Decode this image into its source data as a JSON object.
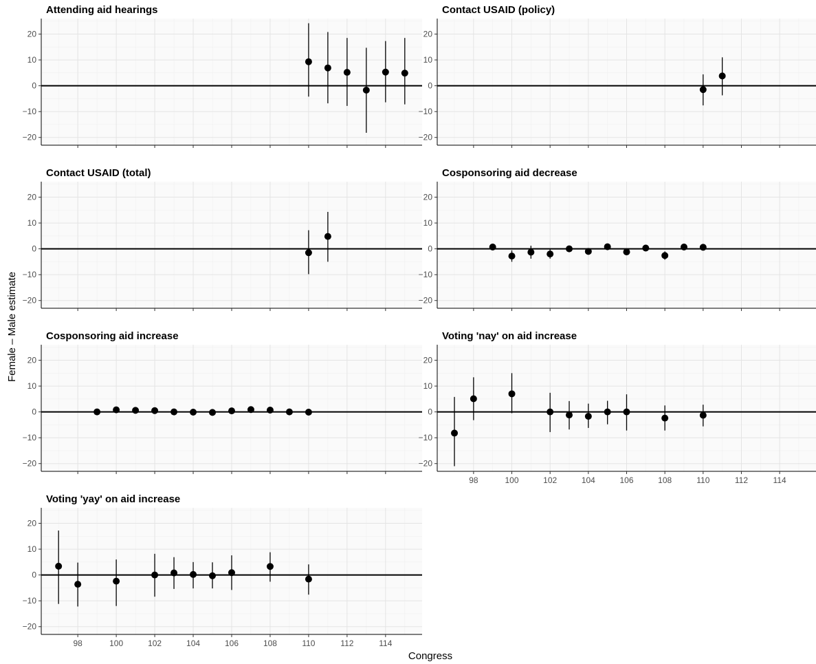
{
  "chart_data": {
    "type": "scatter",
    "style": "point-range faceted plot",
    "xlabel": "Congress",
    "ylabel": "Female – Male estimate",
    "xlim": [
      96.1,
      115.9
    ],
    "ylim": [
      -23,
      26
    ],
    "xticks": [
      98,
      100,
      102,
      104,
      106,
      108,
      110,
      112,
      114
    ],
    "yticks": [
      -20,
      -10,
      0,
      10,
      20
    ],
    "reference_line_y": 0,
    "grid": true,
    "panels": [
      {
        "title": "Attending aid hearings",
        "points": [
          {
            "x": 110,
            "y": 9.3,
            "lo": -4.2,
            "hi": 24.2
          },
          {
            "x": 111,
            "y": 6.9,
            "lo": -6.8,
            "hi": 20.8
          },
          {
            "x": 112,
            "y": 5.2,
            "lo": -7.8,
            "hi": 18.5
          },
          {
            "x": 113,
            "y": -1.7,
            "lo": -18.2,
            "hi": 14.7
          },
          {
            "x": 114,
            "y": 5.3,
            "lo": -6.4,
            "hi": 17.3
          },
          {
            "x": 115,
            "y": 4.9,
            "lo": -7.2,
            "hi": 18.5
          }
        ]
      },
      {
        "title": "Contact USAID (policy)",
        "points": [
          {
            "x": 110,
            "y": -1.5,
            "lo": -7.6,
            "hi": 4.4
          },
          {
            "x": 111,
            "y": 3.8,
            "lo": -3.7,
            "hi": 11.0
          }
        ]
      },
      {
        "title": "Contact USAID (total)",
        "points": [
          {
            "x": 110,
            "y": -1.5,
            "lo": -9.8,
            "hi": 7.2
          },
          {
            "x": 111,
            "y": 4.8,
            "lo": -5.0,
            "hi": 14.3
          }
        ]
      },
      {
        "title": "Cosponsoring aid decrease",
        "points": [
          {
            "x": 99,
            "y": 0.7,
            "lo": 0.2,
            "hi": 1.2
          },
          {
            "x": 100,
            "y": -2.8,
            "lo": -5.0,
            "hi": -0.6
          },
          {
            "x": 101,
            "y": -1.3,
            "lo": -3.8,
            "hi": 1.2
          },
          {
            "x": 102,
            "y": -2.0,
            "lo": -3.8,
            "hi": -0.2
          },
          {
            "x": 103,
            "y": 0.0,
            "lo": -1.2,
            "hi": 1.2
          },
          {
            "x": 104,
            "y": -1.0,
            "lo": -2.2,
            "hi": 0.2
          },
          {
            "x": 105,
            "y": 0.8,
            "lo": 0.2,
            "hi": 1.4
          },
          {
            "x": 106,
            "y": -1.2,
            "lo": -2.0,
            "hi": -0.4
          },
          {
            "x": 107,
            "y": 0.3,
            "lo": -0.3,
            "hi": 0.9
          },
          {
            "x": 108,
            "y": -2.6,
            "lo": -4.2,
            "hi": -1.0
          },
          {
            "x": 109,
            "y": 0.7,
            "lo": 0.2,
            "hi": 1.2
          },
          {
            "x": 110,
            "y": 0.6,
            "lo": 0.1,
            "hi": 1.1
          }
        ]
      },
      {
        "title": "Cosponsoring aid increase",
        "points": [
          {
            "x": 99,
            "y": 0.0,
            "lo": -0.4,
            "hi": 0.4
          },
          {
            "x": 100,
            "y": 0.8,
            "lo": 0.3,
            "hi": 1.3
          },
          {
            "x": 101,
            "y": 0.6,
            "lo": 0.2,
            "hi": 1.0
          },
          {
            "x": 102,
            "y": 0.5,
            "lo": 0.1,
            "hi": 0.9
          },
          {
            "x": 103,
            "y": 0.0,
            "lo": -0.4,
            "hi": 0.4
          },
          {
            "x": 104,
            "y": -0.1,
            "lo": -0.5,
            "hi": 0.3
          },
          {
            "x": 105,
            "y": -0.2,
            "lo": -0.6,
            "hi": 0.2
          },
          {
            "x": 106,
            "y": 0.4,
            "lo": 0.0,
            "hi": 0.8
          },
          {
            "x": 107,
            "y": 0.9,
            "lo": 0.4,
            "hi": 1.4
          },
          {
            "x": 108,
            "y": 0.7,
            "lo": 0.2,
            "hi": 1.2
          },
          {
            "x": 109,
            "y": 0.0,
            "lo": -0.4,
            "hi": 0.4
          },
          {
            "x": 110,
            "y": -0.1,
            "lo": -0.5,
            "hi": 0.3
          }
        ]
      },
      {
        "title": "Voting 'nay' on aid increase",
        "points": [
          {
            "x": 97,
            "y": -8.2,
            "lo": -21.0,
            "hi": 5.8
          },
          {
            "x": 98,
            "y": 5.1,
            "lo": -3.2,
            "hi": 13.4
          },
          {
            "x": 100,
            "y": 7.0,
            "lo": -0.5,
            "hi": 15.0
          },
          {
            "x": 102,
            "y": 0.0,
            "lo": -7.8,
            "hi": 7.4
          },
          {
            "x": 103,
            "y": -1.2,
            "lo": -6.8,
            "hi": 4.2
          },
          {
            "x": 104,
            "y": -1.7,
            "lo": -6.2,
            "hi": 3.2
          },
          {
            "x": 105,
            "y": 0.0,
            "lo": -4.8,
            "hi": 4.3
          },
          {
            "x": 106,
            "y": 0.0,
            "lo": -7.2,
            "hi": 6.8
          },
          {
            "x": 108,
            "y": -2.4,
            "lo": -7.2,
            "hi": 2.5
          },
          {
            "x": 110,
            "y": -1.3,
            "lo": -5.6,
            "hi": 2.8
          }
        ]
      },
      {
        "title": "Voting 'yay' on aid increase",
        "points": [
          {
            "x": 97,
            "y": 3.4,
            "lo": -11.2,
            "hi": 17.2
          },
          {
            "x": 98,
            "y": -3.6,
            "lo": -12.2,
            "hi": 4.8
          },
          {
            "x": 100,
            "y": -2.4,
            "lo": -12.0,
            "hi": 6.0
          },
          {
            "x": 102,
            "y": 0.0,
            "lo": -8.4,
            "hi": 8.2
          },
          {
            "x": 103,
            "y": 0.8,
            "lo": -5.4,
            "hi": 6.9
          },
          {
            "x": 104,
            "y": 0.2,
            "lo": -5.2,
            "hi": 5.0
          },
          {
            "x": 105,
            "y": -0.3,
            "lo": -5.2,
            "hi": 4.9
          },
          {
            "x": 106,
            "y": 0.9,
            "lo": -5.8,
            "hi": 7.6
          },
          {
            "x": 108,
            "y": 3.3,
            "lo": -2.6,
            "hi": 8.8
          },
          {
            "x": 110,
            "y": -1.6,
            "lo": -7.6,
            "hi": 4.1
          }
        ]
      }
    ]
  }
}
